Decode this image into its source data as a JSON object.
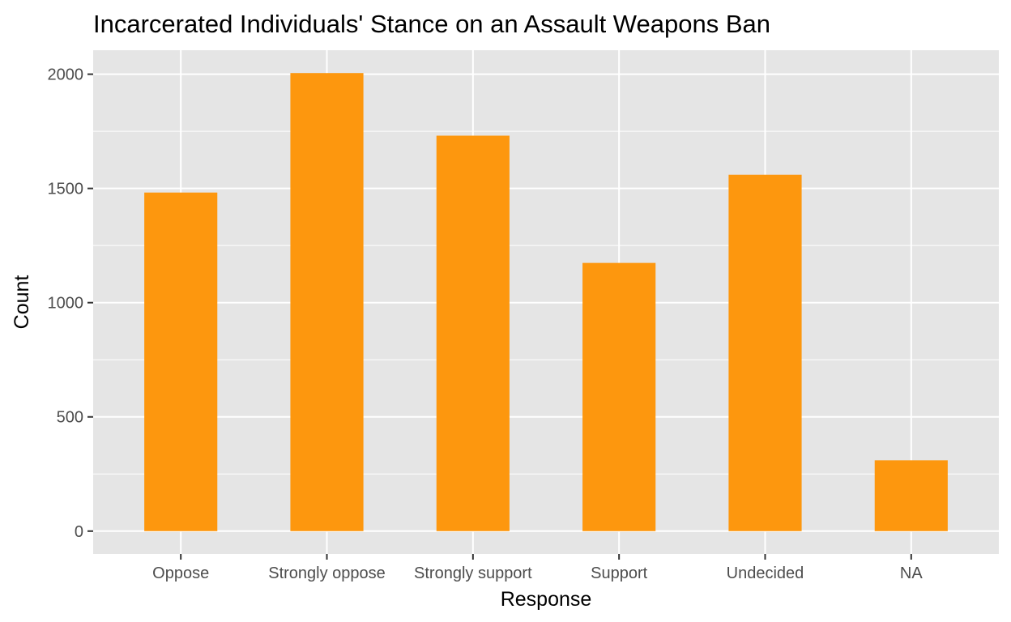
{
  "chart_data": {
    "type": "bar",
    "title": "Incarcerated Individuals' Stance on an Assault Weapons Ban",
    "xlabel": "Response",
    "ylabel": "Count",
    "categories": [
      "Oppose",
      "Strongly oppose",
      "Strongly support",
      "Support",
      "Undecided",
      "NA"
    ],
    "values": [
      1482,
      2005,
      1731,
      1174,
      1560,
      310
    ],
    "ylim": [
      -100,
      2105
    ],
    "yticks": [
      "0",
      "500",
      "1000",
      "1500",
      "2000"
    ],
    "grid": true,
    "legend": "none",
    "colors": {
      "bar": "#FD970E",
      "panel_background": "#E5E5E5",
      "grid": "#FFFFFF",
      "tick_text": "#4D4D4D",
      "tick_mark": "#333333"
    }
  }
}
